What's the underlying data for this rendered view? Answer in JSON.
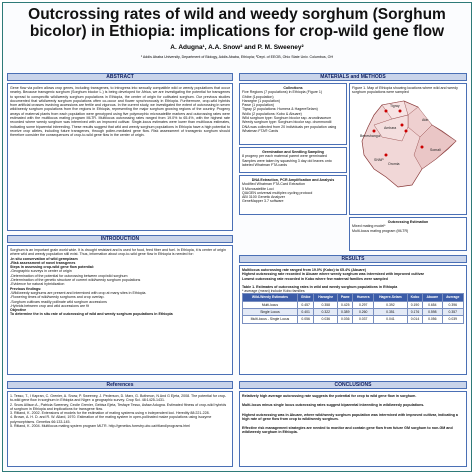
{
  "header": {
    "title": "Outcrossing rates of wild and weedy sorghum (Sorghum bicolor) in Ethiopia: implications for crop-wild gene flow",
    "authors": "A. Adugna¹, A.A. Snow² and P. M. Sweeney²",
    "affiliations": "¹ Addis Ababa University, Department of Biology, Addis Ababa, Ethiopia; ²Dept. of EEOB, Ohio State Univ. Columbus, OH"
  },
  "abstract": {
    "heading": "ABSTRACT",
    "text": "Gene flow via pollen allows crop genes, including transgenes, to introgress into sexually compatible wild or weedy populations that occur nearby. Because transgenic sorghum (Sorghum bicolor L.) is being developed for Africa, we are investigating the potential for transgenes to spread to conspecific wild/weedy sorghum populations in Ethiopia, the center of origin for cultivated sorghum. Our previous studies documented that wild/weedy sorghum populations often co-occur and flower synchronously in Ethiopia. Furthermore, crop-wild hybrids from artificial crosses involving accessions are fertile and vigorous. In the current study, we investigated the extent of outcrossing in seven wild/weedy sorghum populations from five regions in Ethiopia, representing the major sorghum growing regions of the country. Progeny arrays of maternal plants from each population were genotyped using five polymorphic microsatellite markers and outcrossing rates were estimated with the multilocus mating program MLTR. Multilocus outcrossing rates ranged from 19.0% to 65.4%, with the highest rate recorded where weedy sorghum was intermixed with an improved cultivar. Single-locus estimates were lower than multilocus estimates, indicating some biparental inbreeding. These results suggest that wild and weedy sorghum populations in Ethiopia have a high potential to receive crop alleles, including future transgenes, through pollen-mediated gene flow. Risk assessment of transgenic sorghum should therefore consider the consequences of crop-to-wild gene flow in the center of origin."
  },
  "introduction": {
    "heading": "INTRODUCTION",
    "lines": [
      "Sorghum is an important grain world wide. It is drought resistant and is used for food, feed fiber and fuel. In Ethiopia, it is center of origin where wild and weedy population still exist. Thus, information about crop-to-wild gene flow in Ethiopia is needed for:",
      "-In situ conservation of wild germplasm",
      "-Risk assessment of novel transgenes",
      "Steps in assessing crop-wild gene flow potential:",
      "-Geographic surveys in center of origin",
      "-Determination of the potential for outcrossing between crop/wild sorghum",
      "-Determination of the genetic structure of current wild/weedy sorghum populations",
      "-Evidence for natural hybridization",
      "Previous findings:",
      "-Wild/weedy sorghums are present and intermixed with crop at many sites in Ethiopia.",
      "-Flowering times of wild/weedy sorghums and crop overlap.",
      "-Sorghum cultivars readily pollinate wild sorghum accessions",
      "-Hybrids between crop and wild accessions are fit",
      "Objective",
      "To determine the in situ rate of outcrossing of wild and weedy sorghum populations in Ethiopia"
    ]
  },
  "references": {
    "heading": "References",
    "items": [
      "1. Tesso, T., I Kapran, C. Grenier, A. Snow, P. Sweeney, J. Pederson, D. Marx, G. Bothmon, N And G Ejeta, 2008. The potential for crop-to-wild gene flow in sorghum in Ethiopia and Niger: a geographic survey. Crop Sci. 48:1425-1431.",
      "2. Snow Allison A., Patricia Sweeney, Cecile Grenier, Gebisa Ejeta, Tesfaye Tesso, Asfaw Adugna. Estimated fitness of crop-wild hybrids of sorghum in Ethiopia and implications for transgene flow.",
      "3. Ritland, K. 2002. Extensions of models for the estimation of mating systems using n independent loci. Heredity 88:221-228.",
      "4. Brown, A. H. D. and R. W. Allard, 1970. Estimation of the mating system in open-pollinated maize populations using isozyme polymorphisms. Genetics 66:133-145.",
      "5. Ritland, K. 2004. Multilocus mating system program MLTR. http://genetics.forestry.ubc.ca/ritland/programs.html"
    ]
  },
  "methods": {
    "heading": "MATERIALS and METHODS",
    "collections_title": "Collections",
    "collections": [
      "Five Regions (7 populations) in Ethiopia (Figure 1)",
      "Ghibe (1population)",
      "Hararghe (1 population)",
      "Pawe (1 population)",
      "Tigray (2 populations: Humera & HagereSelam)",
      "Wollo (2 populations: Kobo & Abuare)",
      "Wild sorghum type: Sorghum bicolor ssp. arundinaceum",
      "Weedy sorghum type: Sorghum bicolor ssp. drummondii",
      "DNA was collected from 20 individuals per population using Whatman FTA® Cards"
    ],
    "map_caption": "Figure 1. Map of Ethiopia showing locations where wild and weedy sorghum populations were sampled",
    "map_labels": [
      "Tigray",
      "Afar",
      "Amhara",
      "Beneshangul",
      "Oromia",
      "Somali",
      "SNNP"
    ],
    "germination_title": "Germination and Seedling Sampling",
    "germination": [
      "8 progeny per each maternal parent were germinated",
      "Samples were taken by squashing 3 day old leaves onto labeled Whatman FTA cards"
    ],
    "dna_title": "DNA Extraction, PCR Amplification and Analysis",
    "dna": [
      "Modified Whatman FTA Card Extraction",
      "5 Microsatellite Loci",
      "QIAGEN universal multiplex cycling protocol",
      "ABI 3100 Genetic Analyzer",
      "GeneMapper 3.7 software"
    ],
    "outcrossing_title": "Outcrossing Estimation",
    "outcrossing": [
      "Mixed mating model*",
      "Multi-locus mating program (MLTR)"
    ]
  },
  "results": {
    "heading": "RESULTS",
    "bullets": [
      "Multilocus outcrossing rate ranged from 19.0% (Kobo) to 65.4% (Abuare)",
      "Highest outcrossing rate recorded in Abuare where weedy sorghum was intermixed with improved cultivar",
      "Lowest outcrossing rate recorded in Kobo where few maternal families were sampled"
    ],
    "table": {
      "caption": "Table 1. Estimates of outcrossing rates in wild and weedy sorghum populations in Ethiopia",
      "note": "* average (mean) include Kobo families",
      "columns": [
        "Wild-Weedy Estimates",
        "Ghibe",
        "Hararghe",
        "Pawe",
        "Humera",
        "Hagere-Selam",
        "Kobo",
        "Abuare",
        "Average"
      ],
      "rows": [
        [
          "Multi-locus",
          "0.457",
          "0.358",
          "0.425",
          "0.297",
          "0.392",
          "0.190",
          "0.654",
          "0.396"
        ],
        [
          "Single Locus",
          "0.401",
          "0.322",
          "0.389",
          "0.260",
          "0.351",
          "0.176",
          "0.598",
          "0.357"
        ],
        [
          "Multi-locus - Single Locus",
          "0.056",
          "0.036",
          "0.036",
          "0.037",
          "0.041",
          "0.014",
          "0.056",
          "0.039"
        ]
      ]
    }
  },
  "conclusions": {
    "heading": "CONCLUSIONS",
    "items": [
      "Relatively high average outcrossing rate suggests the potential for crop to wild gene flow in sorghum.",
      "Multi-locus minus single locus outcrossing rates suggest biparental inbreeding in wild/weedy populations.",
      "Highest outcrossing was in Abuare, where wild/weedy sorghum population was intermixed with improved cultivar, indicating a high rate of gene flow from crop to wild/weedy sorghum.",
      "Effective risk management strategies are needed to monitor and contain gene flow from future GM sorghum to non-GM and wild/weedy sorghum in Ethiopia."
    ]
  }
}
